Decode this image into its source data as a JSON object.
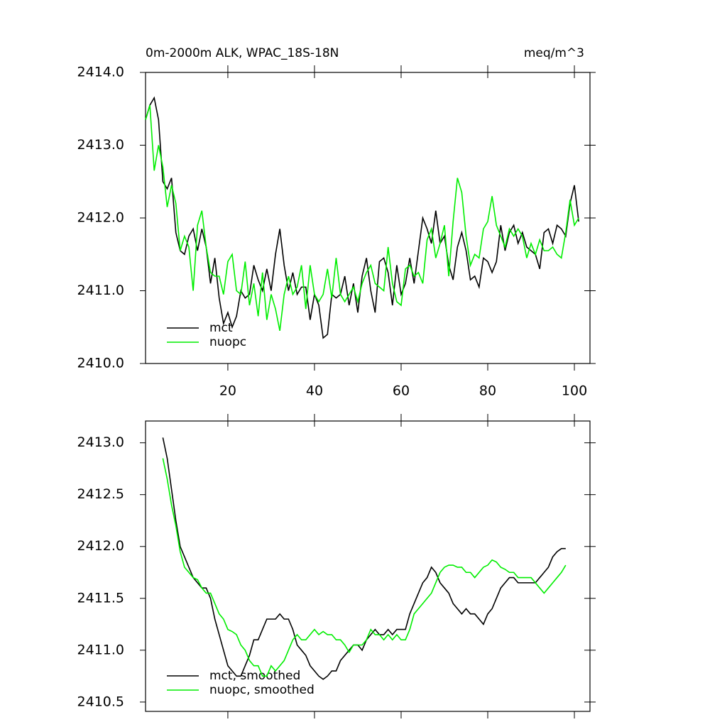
{
  "chart_data": [
    {
      "type": "line",
      "title": "0m-2000m ALK, WPAC_18S-18N",
      "subtitle": "meq/m^3",
      "x": [
        1,
        2,
        3,
        4,
        5,
        6,
        7,
        8,
        9,
        10,
        11,
        12,
        13,
        14,
        15,
        16,
        17,
        18,
        19,
        20,
        21,
        22,
        23,
        24,
        25,
        26,
        27,
        28,
        29,
        30,
        31,
        32,
        33,
        34,
        35,
        36,
        37,
        38,
        39,
        40,
        41,
        42,
        43,
        44,
        45,
        46,
        47,
        48,
        49,
        50,
        51,
        52,
        53,
        54,
        55,
        56,
        57,
        58,
        59,
        60,
        61,
        62,
        63,
        64,
        65,
        66,
        67,
        68,
        69,
        70,
        71,
        72,
        73,
        74,
        75,
        76,
        77,
        78,
        79,
        80,
        81,
        82,
        83,
        84,
        85,
        86,
        87,
        88,
        89,
        90,
        91,
        92,
        93,
        94,
        95,
        96,
        97,
        98,
        99,
        100,
        101
      ],
      "series": [
        {
          "name": "mct",
          "color": "#000000",
          "values": [
            2413.35,
            2413.55,
            2413.65,
            2413.35,
            2412.5,
            2412.4,
            2412.55,
            2411.8,
            2411.55,
            2411.5,
            2411.75,
            2411.85,
            2411.55,
            2411.85,
            2411.6,
            2411.1,
            2411.45,
            2410.9,
            2410.55,
            2410.7,
            2410.5,
            2410.65,
            2411.0,
            2410.9,
            2410.95,
            2411.35,
            2411.15,
            2411.0,
            2411.3,
            2411.0,
            2411.5,
            2411.85,
            2411.35,
            2411.0,
            2411.25,
            2410.95,
            2411.05,
            2411.05,
            2410.6,
            2410.95,
            2410.8,
            2410.35,
            2410.4,
            2410.95,
            2410.9,
            2410.95,
            2411.2,
            2410.8,
            2411.1,
            2410.7,
            2411.2,
            2411.45,
            2411.0,
            2410.7,
            2411.4,
            2411.45,
            2411.25,
            2410.8,
            2411.35,
            2410.95,
            2411.1,
            2411.45,
            2411.1,
            2411.55,
            2412.0,
            2411.85,
            2411.65,
            2412.1,
            2411.65,
            2411.75,
            2411.35,
            2411.15,
            2411.6,
            2411.8,
            2411.55,
            2411.15,
            2411.2,
            2411.05,
            2411.45,
            2411.4,
            2411.25,
            2411.4,
            2411.9,
            2411.55,
            2411.8,
            2411.9,
            2411.65,
            2411.8,
            2411.6,
            2411.55,
            2411.5,
            2411.3,
            2411.8,
            2411.85,
            2411.65,
            2411.9,
            2411.85,
            2411.75,
            2412.2,
            2412.45,
            2411.95
          ]
        },
        {
          "name": "nuopc",
          "color": "#00ee00",
          "values": [
            2413.35,
            2413.55,
            2412.65,
            2413.0,
            2412.7,
            2412.15,
            2412.45,
            2412.2,
            2411.55,
            2411.75,
            2411.6,
            2411.0,
            2411.9,
            2412.1,
            2411.6,
            2411.25,
            2411.2,
            2411.2,
            2410.95,
            2411.4,
            2411.5,
            2411.0,
            2410.95,
            2411.4,
            2410.8,
            2411.1,
            2410.65,
            2411.25,
            2410.6,
            2410.95,
            2410.75,
            2410.45,
            2410.95,
            2411.2,
            2410.95,
            2411.05,
            2411.35,
            2410.75,
            2411.35,
            2410.95,
            2410.85,
            2410.95,
            2411.3,
            2410.9,
            2411.45,
            2410.95,
            2410.85,
            2410.95,
            2411.05,
            2410.85,
            2411.1,
            2411.25,
            2411.35,
            2411.1,
            2411.05,
            2411.0,
            2411.6,
            2411.1,
            2410.85,
            2410.8,
            2411.3,
            2411.35,
            2411.2,
            2411.25,
            2411.1,
            2411.7,
            2411.85,
            2411.45,
            2411.65,
            2411.9,
            2411.2,
            2411.95,
            2412.55,
            2412.35,
            2411.75,
            2411.35,
            2411.5,
            2411.45,
            2411.85,
            2411.95,
            2412.3,
            2411.9,
            2411.75,
            2411.6,
            2411.85,
            2411.75,
            2411.85,
            2411.75,
            2411.45,
            2411.65,
            2411.5,
            2411.7,
            2411.55,
            2411.55,
            2411.6,
            2411.5,
            2411.45,
            2411.8,
            2412.25,
            2411.9,
            2412.0
          ]
        }
      ],
      "xlim": [
        1,
        103.6
      ],
      "xticks": [
        20,
        40,
        60,
        80,
        100
      ],
      "ylim": [
        2410,
        2414
      ],
      "yticks": [
        {
          "value": 2410,
          "label": "2410.0"
        },
        {
          "value": 2411,
          "label": "2411.0"
        },
        {
          "value": 2412,
          "label": "2412.0"
        },
        {
          "value": 2413,
          "label": "2413.0"
        },
        {
          "value": 2414,
          "label": "2414.0"
        }
      ],
      "legend": "bottom-left"
    },
    {
      "type": "line",
      "x": [
        5,
        6,
        7,
        8,
        9,
        10,
        11,
        12,
        13,
        14,
        15,
        16,
        17,
        18,
        19,
        20,
        21,
        22,
        23,
        24,
        25,
        26,
        27,
        28,
        29,
        30,
        31,
        32,
        33,
        34,
        35,
        36,
        37,
        38,
        39,
        40,
        41,
        42,
        43,
        44,
        45,
        46,
        47,
        48,
        49,
        50,
        51,
        52,
        53,
        54,
        55,
        56,
        57,
        58,
        59,
        60,
        61,
        62,
        63,
        64,
        65,
        66,
        67,
        68,
        69,
        70,
        71,
        72,
        73,
        74,
        75,
        76,
        77,
        78,
        79,
        80,
        81,
        82,
        83,
        84,
        85,
        86,
        87,
        88,
        89,
        90,
        91,
        92,
        93,
        94,
        95,
        96,
        97,
        98
      ],
      "series": [
        {
          "name": "mct, smoothed",
          "color": "#000000",
          "values": [
            2413.05,
            2412.85,
            2412.55,
            2412.25,
            2412.0,
            2411.9,
            2411.8,
            2411.7,
            2411.65,
            2411.6,
            2411.6,
            2411.5,
            2411.3,
            2411.15,
            2411.0,
            2410.85,
            2410.8,
            2410.75,
            2410.75,
            2410.85,
            2410.95,
            2411.1,
            2411.1,
            2411.2,
            2411.3,
            2411.3,
            2411.3,
            2411.35,
            2411.3,
            2411.3,
            2411.2,
            2411.05,
            2411.0,
            2410.95,
            2410.85,
            2410.8,
            2410.75,
            2410.72,
            2410.75,
            2410.8,
            2410.8,
            2410.9,
            2410.95,
            2411.0,
            2411.05,
            2411.05,
            2411.0,
            2411.1,
            2411.15,
            2411.2,
            2411.15,
            2411.15,
            2411.2,
            2411.15,
            2411.2,
            2411.2,
            2411.2,
            2411.35,
            2411.45,
            2411.55,
            2411.65,
            2411.7,
            2411.8,
            2411.75,
            2411.65,
            2411.6,
            2411.55,
            2411.45,
            2411.4,
            2411.35,
            2411.4,
            2411.35,
            2411.35,
            2411.3,
            2411.25,
            2411.35,
            2411.4,
            2411.5,
            2411.6,
            2411.65,
            2411.7,
            2411.7,
            2411.65,
            2411.65,
            2411.65,
            2411.65,
            2411.65,
            2411.7,
            2411.75,
            2411.8,
            2411.9,
            2411.95,
            2411.98,
            2411.98
          ]
        },
        {
          "name": "nuopc, smoothed",
          "color": "#00ee00",
          "values": [
            2412.85,
            2412.65,
            2412.4,
            2412.2,
            2411.95,
            2411.8,
            2411.75,
            2411.7,
            2411.68,
            2411.6,
            2411.55,
            2411.55,
            2411.45,
            2411.35,
            2411.3,
            2411.2,
            2411.18,
            2411.15,
            2411.05,
            2411.0,
            2410.9,
            2410.85,
            2410.85,
            2410.75,
            2410.75,
            2410.85,
            2410.8,
            2410.85,
            2410.9,
            2411.0,
            2411.1,
            2411.15,
            2411.1,
            2411.1,
            2411.15,
            2411.2,
            2411.15,
            2411.18,
            2411.15,
            2411.15,
            2411.1,
            2411.1,
            2411.05,
            2410.98,
            2411.05,
            2411.05,
            2411.05,
            2411.1,
            2411.2,
            2411.15,
            2411.15,
            2411.1,
            2411.15,
            2411.1,
            2411.15,
            2411.1,
            2411.1,
            2411.2,
            2411.35,
            2411.4,
            2411.45,
            2411.5,
            2411.55,
            2411.65,
            2411.75,
            2411.8,
            2411.82,
            2411.82,
            2411.8,
            2411.8,
            2411.75,
            2411.75,
            2411.7,
            2411.75,
            2411.8,
            2411.82,
            2411.87,
            2411.85,
            2411.8,
            2411.78,
            2411.75,
            2411.75,
            2411.7,
            2411.7,
            2411.7,
            2411.7,
            2411.65,
            2411.6,
            2411.55,
            2411.6,
            2411.65,
            2411.7,
            2411.75,
            2411.82
          ]
        }
      ],
      "xlim": [
        1,
        103.6
      ],
      "xticks": [
        20,
        40,
        60,
        80,
        100
      ],
      "ylim": [
        2410.41,
        2413.21
      ],
      "yticks": [
        2410.5,
        {
          "value": 2411,
          "label": "2411.0"
        },
        2411.5,
        {
          "value": 2412,
          "label": "2412.0"
        },
        2412.5,
        {
          "value": 2413,
          "label": "2413.0"
        }
      ],
      "legend": "bottom-left"
    }
  ]
}
